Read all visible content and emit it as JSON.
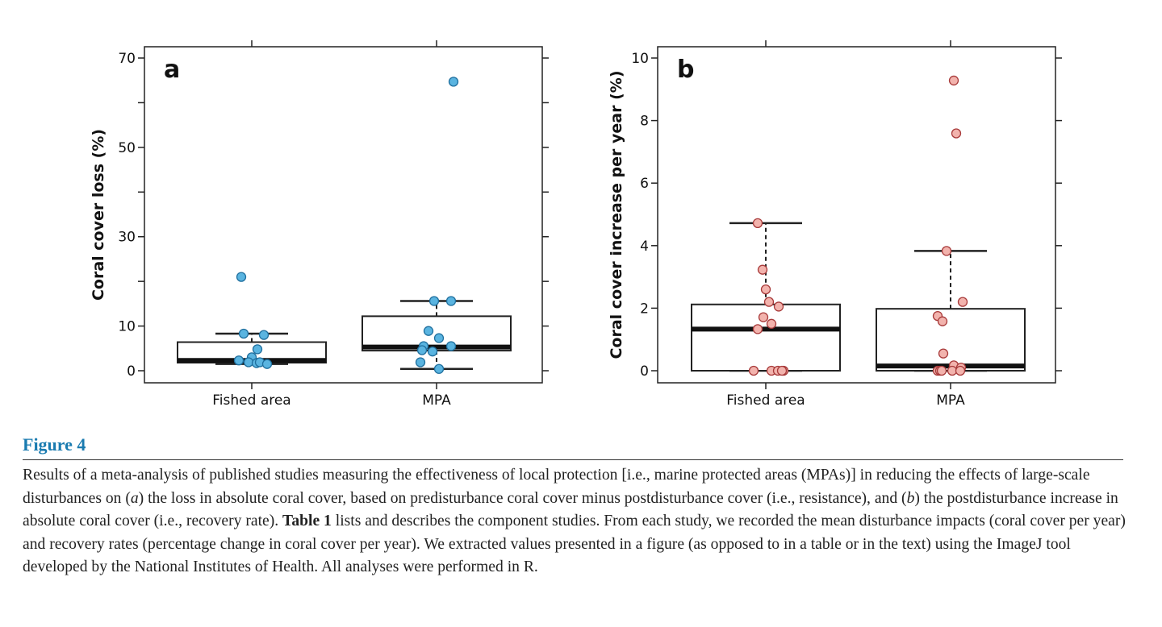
{
  "chart_data": [
    {
      "panel": "a",
      "type": "box",
      "ylabel": "Coral cover loss (%)",
      "ylim": [
        -2.5,
        72
      ],
      "yticks": [
        0,
        10,
        20,
        30,
        40,
        50,
        60,
        70
      ],
      "yticklabels": [
        "0",
        "10",
        "",
        "30",
        "",
        "50",
        "",
        "70"
      ],
      "categories": [
        "Fished area",
        "MPA"
      ],
      "point_color": "#5ab4e0",
      "point_edge": "#1f6f9e",
      "boxes": [
        {
          "q1": 1.8,
          "median": 2.3,
          "q3": 6.4,
          "whisker_low": 1.5,
          "whisker_high": 8.3
        },
        {
          "q1": 4.5,
          "median": 5.3,
          "q3": 12.2,
          "whisker_low": 0.4,
          "whisker_high": 15.6
        }
      ],
      "points": [
        [
          21.0,
          8.3,
          8.0,
          4.8,
          3.0,
          2.3,
          1.9,
          1.7,
          1.9,
          1.5
        ],
        [
          64.7,
          15.6,
          15.6,
          8.9,
          7.3,
          5.5,
          5.5,
          4.6,
          4.3,
          1.9,
          0.4
        ]
      ]
    },
    {
      "panel": "b",
      "type": "box",
      "ylabel": "Coral cover increase per year (%)",
      "ylim": [
        -0.4,
        10.3
      ],
      "yticks": [
        0,
        2,
        4,
        6,
        8,
        10
      ],
      "yticklabels": [
        "0",
        "2",
        "4",
        "6",
        "8",
        "10"
      ],
      "categories": [
        "Fished area",
        "MPA"
      ],
      "point_color": "#f2b3ad",
      "point_edge": "#a83a3a",
      "boxes": [
        {
          "q1": 0,
          "median": 1.33,
          "q3": 2.12,
          "whisker_low": 0,
          "whisker_high": 4.72
        },
        {
          "q1": 0,
          "median": 0.15,
          "q3": 1.98,
          "whisker_low": 0,
          "whisker_high": 3.83
        }
      ],
      "points": [
        [
          4.72,
          3.23,
          2.6,
          2.2,
          2.05,
          1.71,
          1.5,
          1.33,
          0,
          0,
          0,
          0,
          0
        ],
        [
          9.28,
          7.59,
          3.83,
          2.2,
          1.75,
          1.58,
          0.55,
          0.17,
          0.1,
          0,
          0,
          0,
          0,
          0
        ]
      ]
    }
  ],
  "figure": {
    "title": "Figure 4",
    "caption_parts": [
      "Results of a meta-analysis of published studies measuring the effectiveness of local protection [i.e., marine protected areas (MPAs)] in reducing the effects of large-scale disturbances on (",
      "a",
      ") the loss in absolute coral cover, based on predisturbance coral cover minus postdisturbance cover (i.e., resistance), and (",
      "b",
      ") the postdisturbance increase in absolute coral cover (i.e., recovery rate). ",
      "Table 1",
      " lists and describes the component studies. From each study, we recorded the mean disturbance impacts (coral cover per year) and recovery rates (percentage change in coral cover per year). We extracted values presented in a figure (as opposed to in a table or in the text) using the ImageJ tool developed by the National Institutes of Health. All analyses were performed in R."
    ],
    "title_color": "#1a7bb0"
  }
}
